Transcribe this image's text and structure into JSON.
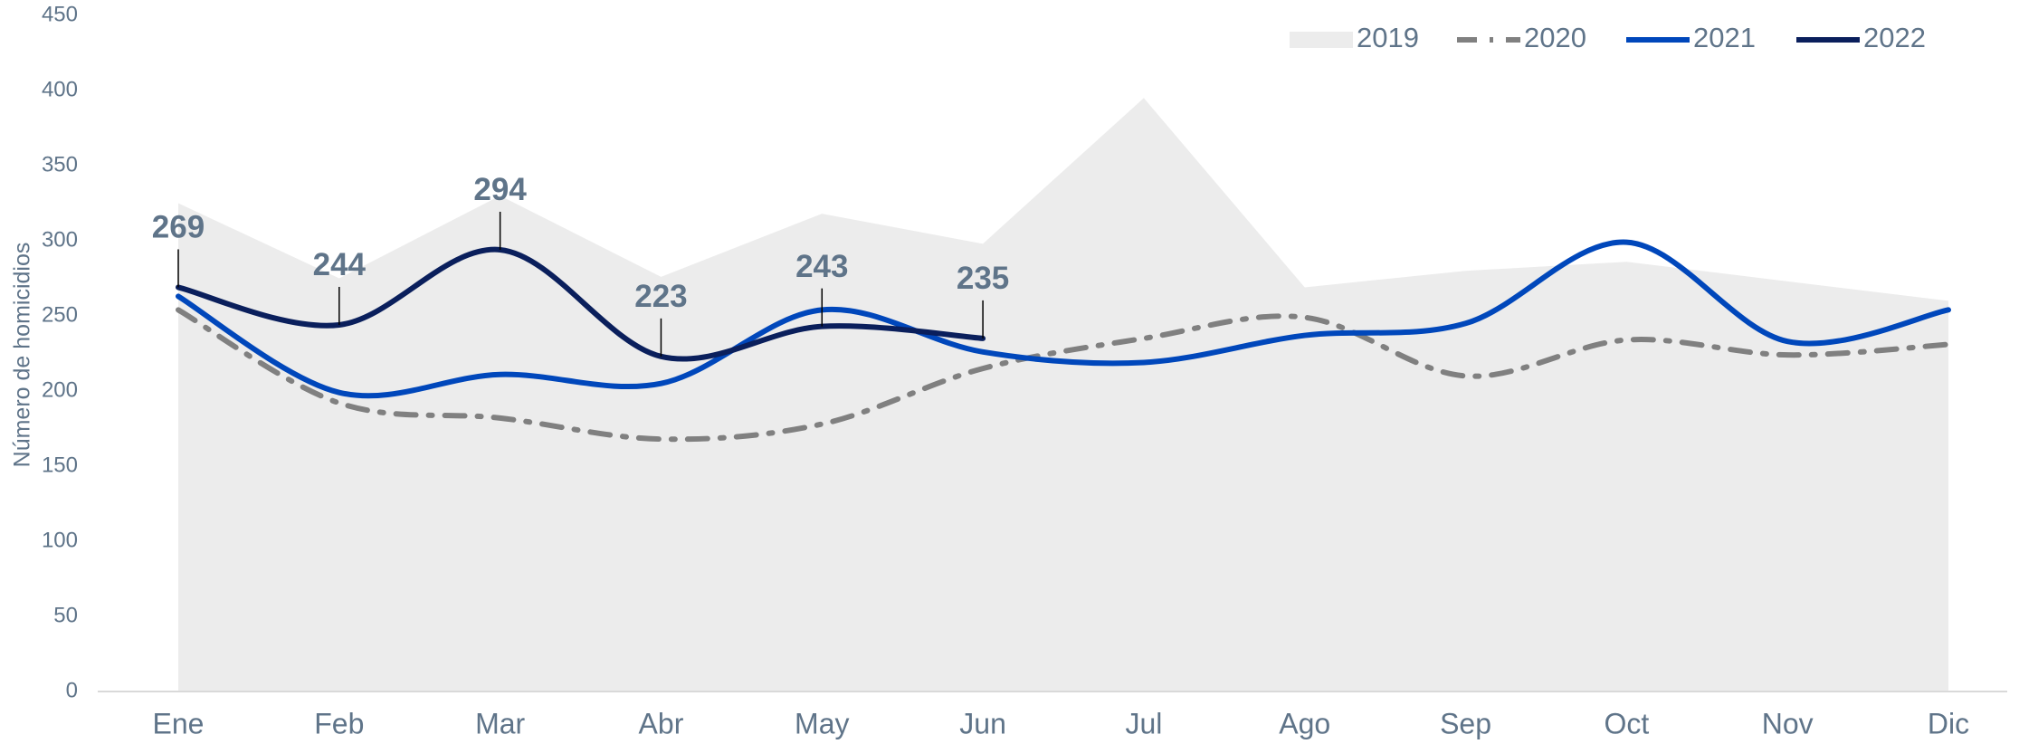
{
  "chart_data": {
    "type": "line",
    "y_label": "Número de homicidios",
    "categories": [
      "Ene",
      "Feb",
      "Mar",
      "Abr",
      "May",
      "Jun",
      "Jul",
      "Ago",
      "Sep",
      "Oct",
      "Nov",
      "Dic"
    ],
    "ylim": [
      0,
      450
    ],
    "yticks": [
      0,
      50,
      100,
      150,
      200,
      250,
      300,
      350,
      400,
      450
    ],
    "legend": "top-right",
    "smooth": true,
    "series": [
      {
        "name": "2019",
        "color": "#ececec",
        "style": "area",
        "values": [
          325,
          275,
          330,
          276,
          318,
          298,
          395,
          269,
          280,
          286,
          273,
          260
        ]
      },
      {
        "name": "2020",
        "color": "#808080",
        "style": "dashdot",
        "values": [
          254,
          192,
          182,
          168,
          178,
          215,
          235,
          249,
          210,
          234,
          224,
          231
        ]
      },
      {
        "name": "2021",
        "color": "#0047bb",
        "style": "solid",
        "values": [
          263,
          199,
          211,
          205,
          254,
          226,
          219,
          237,
          245,
          299,
          233,
          254
        ]
      },
      {
        "name": "2022",
        "color": "#0a1f5c",
        "style": "solid",
        "data_labels": true,
        "values": [
          269,
          244,
          294,
          223,
          243,
          235,
          null,
          null,
          null,
          null,
          null,
          null
        ]
      }
    ]
  }
}
